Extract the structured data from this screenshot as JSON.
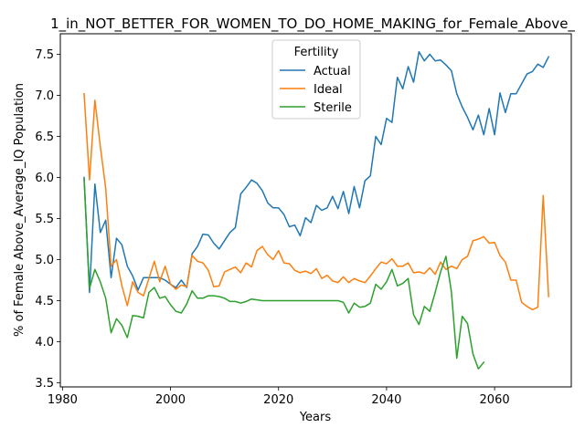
{
  "chart_data": {
    "type": "line",
    "title": "1_in_NOT_BETTER_FOR_WOMEN_TO_DO_HOME_MAKING_for_Female_Above_",
    "xlabel": "Years",
    "ylabel": "% of Female Above_Average_IQ Population",
    "xlim": [
      1979.6,
      2074.2
    ],
    "ylim": [
      3.45,
      7.75
    ],
    "xticks": [
      1980,
      2000,
      2020,
      2040,
      2060
    ],
    "yticks": [
      3.5,
      4.0,
      4.5,
      5.0,
      5.5,
      6.0,
      6.5,
      7.0,
      7.5
    ],
    "legend": {
      "title": "Fertility",
      "placement": "top-center"
    },
    "grid": false,
    "colors": {
      "Actual": "#1f77b4",
      "Ideal": "#ff7f0e",
      "Sterile": "#2ca02c"
    },
    "series": [
      {
        "name": "Actual",
        "points": [
          [
            1984,
            6.0
          ],
          [
            1985,
            4.6
          ],
          [
            1986,
            5.92
          ],
          [
            1987,
            5.33
          ],
          [
            1988,
            5.48
          ],
          [
            1989,
            4.78
          ],
          [
            1990,
            5.26
          ],
          [
            1991,
            5.18
          ],
          [
            1992,
            4.92
          ],
          [
            1993,
            4.8
          ],
          [
            1994,
            4.63
          ],
          [
            1995,
            4.78
          ],
          [
            1996,
            4.78
          ],
          [
            1997,
            4.78
          ],
          [
            1998,
            4.78
          ],
          [
            1999,
            4.75
          ],
          [
            2000,
            4.7
          ],
          [
            2001,
            4.66
          ],
          [
            2002,
            4.75
          ],
          [
            2003,
            4.66
          ],
          [
            2004,
            5.07
          ],
          [
            2005,
            5.16
          ],
          [
            2006,
            5.31
          ],
          [
            2007,
            5.3
          ],
          [
            2008,
            5.2
          ],
          [
            2009,
            5.13
          ],
          [
            2010,
            5.23
          ],
          [
            2011,
            5.33
          ],
          [
            2012,
            5.39
          ],
          [
            2013,
            5.8
          ],
          [
            2014,
            5.88
          ],
          [
            2015,
            5.97
          ],
          [
            2016,
            5.93
          ],
          [
            2017,
            5.84
          ],
          [
            2018,
            5.69
          ],
          [
            2019,
            5.63
          ],
          [
            2020,
            5.63
          ],
          [
            2021,
            5.55
          ],
          [
            2022,
            5.4
          ],
          [
            2023,
            5.42
          ],
          [
            2024,
            5.29
          ],
          [
            2025,
            5.51
          ],
          [
            2026,
            5.45
          ],
          [
            2027,
            5.66
          ],
          [
            2028,
            5.6
          ],
          [
            2029,
            5.63
          ],
          [
            2030,
            5.77
          ],
          [
            2031,
            5.62
          ],
          [
            2032,
            5.83
          ],
          [
            2033,
            5.56
          ],
          [
            2034,
            5.89
          ],
          [
            2035,
            5.63
          ],
          [
            2036,
            5.96
          ],
          [
            2037,
            6.02
          ],
          [
            2038,
            6.5
          ],
          [
            2039,
            6.4
          ],
          [
            2040,
            6.72
          ],
          [
            2041,
            6.67
          ],
          [
            2042,
            7.22
          ],
          [
            2043,
            7.08
          ],
          [
            2044,
            7.35
          ],
          [
            2045,
            7.16
          ],
          [
            2046,
            7.53
          ],
          [
            2047,
            7.42
          ],
          [
            2048,
            7.5
          ],
          [
            2049,
            7.42
          ],
          [
            2050,
            7.43
          ],
          [
            2051,
            7.37
          ],
          [
            2052,
            7.3
          ],
          [
            2053,
            7.02
          ],
          [
            2054,
            6.86
          ],
          [
            2055,
            6.73
          ],
          [
            2056,
            6.58
          ],
          [
            2057,
            6.76
          ],
          [
            2058,
            6.52
          ],
          [
            2059,
            6.84
          ],
          [
            2060,
            6.52
          ],
          [
            2061,
            7.03
          ],
          [
            2062,
            6.79
          ],
          [
            2063,
            7.02
          ],
          [
            2064,
            7.02
          ],
          [
            2065,
            7.14
          ],
          [
            2066,
            7.26
          ],
          [
            2067,
            7.29
          ],
          [
            2068,
            7.38
          ],
          [
            2069,
            7.34
          ],
          [
            2070,
            7.47
          ]
        ]
      },
      {
        "name": "Ideal",
        "points": [
          [
            1984,
            7.02
          ],
          [
            1985,
            5.97
          ],
          [
            1986,
            6.94
          ],
          [
            1987,
            6.38
          ],
          [
            1988,
            5.87
          ],
          [
            1989,
            4.92
          ],
          [
            1990,
            5.0
          ],
          [
            1991,
            4.68
          ],
          [
            1992,
            4.44
          ],
          [
            1993,
            4.73
          ],
          [
            1994,
            4.6
          ],
          [
            1995,
            4.56
          ],
          [
            1996,
            4.77
          ],
          [
            1997,
            4.98
          ],
          [
            1998,
            4.73
          ],
          [
            1999,
            4.92
          ],
          [
            2000,
            4.7
          ],
          [
            2001,
            4.64
          ],
          [
            2002,
            4.69
          ],
          [
            2003,
            4.67
          ],
          [
            2004,
            5.05
          ],
          [
            2005,
            4.98
          ],
          [
            2006,
            4.96
          ],
          [
            2007,
            4.87
          ],
          [
            2008,
            4.67
          ],
          [
            2009,
            4.68
          ],
          [
            2010,
            4.85
          ],
          [
            2011,
            4.88
          ],
          [
            2012,
            4.91
          ],
          [
            2013,
            4.84
          ],
          [
            2014,
            4.96
          ],
          [
            2015,
            4.91
          ],
          [
            2016,
            5.11
          ],
          [
            2017,
            5.16
          ],
          [
            2018,
            5.06
          ],
          [
            2019,
            5.0
          ],
          [
            2020,
            5.11
          ],
          [
            2021,
            4.96
          ],
          [
            2022,
            4.95
          ],
          [
            2023,
            4.87
          ],
          [
            2024,
            4.84
          ],
          [
            2025,
            4.86
          ],
          [
            2026,
            4.83
          ],
          [
            2027,
            4.89
          ],
          [
            2028,
            4.77
          ],
          [
            2029,
            4.81
          ],
          [
            2030,
            4.74
          ],
          [
            2031,
            4.72
          ],
          [
            2032,
            4.79
          ],
          [
            2033,
            4.72
          ],
          [
            2034,
            4.77
          ],
          [
            2035,
            4.74
          ],
          [
            2036,
            4.72
          ],
          [
            2037,
            4.8
          ],
          [
            2038,
            4.89
          ],
          [
            2039,
            4.97
          ],
          [
            2040,
            4.95
          ],
          [
            2041,
            5.01
          ],
          [
            2042,
            4.92
          ],
          [
            2043,
            4.92
          ],
          [
            2044,
            4.96
          ],
          [
            2045,
            4.84
          ],
          [
            2046,
            4.85
          ],
          [
            2047,
            4.83
          ],
          [
            2048,
            4.9
          ],
          [
            2049,
            4.82
          ],
          [
            2050,
            4.97
          ],
          [
            2051,
            4.88
          ],
          [
            2052,
            4.92
          ],
          [
            2053,
            4.89
          ],
          [
            2054,
            5.0
          ],
          [
            2055,
            5.04
          ],
          [
            2056,
            5.23
          ],
          [
            2057,
            5.25
          ],
          [
            2058,
            5.28
          ],
          [
            2059,
            5.2
          ],
          [
            2060,
            5.21
          ],
          [
            2061,
            5.05
          ],
          [
            2062,
            4.97
          ],
          [
            2063,
            4.75
          ],
          [
            2064,
            4.75
          ],
          [
            2065,
            4.48
          ],
          [
            2066,
            4.43
          ],
          [
            2067,
            4.39
          ],
          [
            2068,
            4.42
          ],
          [
            2069,
            5.78
          ],
          [
            2070,
            4.55
          ]
        ]
      },
      {
        "name": "Sterile",
        "points": [
          [
            1984,
            5.98
          ],
          [
            1985,
            4.65
          ],
          [
            1986,
            4.88
          ],
          [
            1987,
            4.73
          ],
          [
            1988,
            4.53
          ],
          [
            1989,
            4.11
          ],
          [
            1990,
            4.28
          ],
          [
            1991,
            4.2
          ],
          [
            1992,
            4.05
          ],
          [
            1993,
            4.32
          ],
          [
            1994,
            4.31
          ],
          [
            1995,
            4.29
          ],
          [
            1996,
            4.6
          ],
          [
            1997,
            4.66
          ],
          [
            1998,
            4.53
          ],
          [
            1999,
            4.55
          ],
          [
            2000,
            4.45
          ],
          [
            2001,
            4.37
          ],
          [
            2002,
            4.35
          ],
          [
            2003,
            4.46
          ],
          [
            2004,
            4.62
          ],
          [
            2005,
            4.53
          ],
          [
            2006,
            4.53
          ],
          [
            2007,
            4.56
          ],
          [
            2008,
            4.56
          ],
          [
            2009,
            4.55
          ],
          [
            2010,
            4.53
          ],
          [
            2011,
            4.49
          ],
          [
            2012,
            4.49
          ],
          [
            2013,
            4.47
          ],
          [
            2014,
            4.49
          ],
          [
            2015,
            4.52
          ],
          [
            2016,
            4.51
          ],
          [
            2017,
            4.5
          ],
          [
            2018,
            4.5
          ],
          [
            2019,
            4.5
          ],
          [
            2020,
            4.5
          ],
          [
            2021,
            4.5
          ],
          [
            2022,
            4.5
          ],
          [
            2023,
            4.5
          ],
          [
            2024,
            4.5
          ],
          [
            2025,
            4.5
          ],
          [
            2026,
            4.5
          ],
          [
            2027,
            4.5
          ],
          [
            2028,
            4.5
          ],
          [
            2029,
            4.5
          ],
          [
            2030,
            4.5
          ],
          [
            2031,
            4.5
          ],
          [
            2032,
            4.48
          ],
          [
            2033,
            4.35
          ],
          [
            2034,
            4.47
          ],
          [
            2035,
            4.42
          ],
          [
            2036,
            4.43
          ],
          [
            2037,
            4.47
          ],
          [
            2038,
            4.7
          ],
          [
            2039,
            4.64
          ],
          [
            2040,
            4.73
          ],
          [
            2041,
            4.88
          ],
          [
            2042,
            4.68
          ],
          [
            2043,
            4.71
          ],
          [
            2044,
            4.77
          ],
          [
            2045,
            4.33
          ],
          [
            2046,
            4.21
          ],
          [
            2047,
            4.43
          ],
          [
            2048,
            4.37
          ],
          [
            2049,
            4.6
          ],
          [
            2050,
            4.85
          ],
          [
            2051,
            5.04
          ],
          [
            2052,
            4.61
          ],
          [
            2053,
            3.8
          ],
          [
            2054,
            4.31
          ],
          [
            2055,
            4.22
          ],
          [
            2056,
            3.85
          ],
          [
            2057,
            3.67
          ],
          [
            2058,
            3.75
          ]
        ]
      }
    ]
  }
}
